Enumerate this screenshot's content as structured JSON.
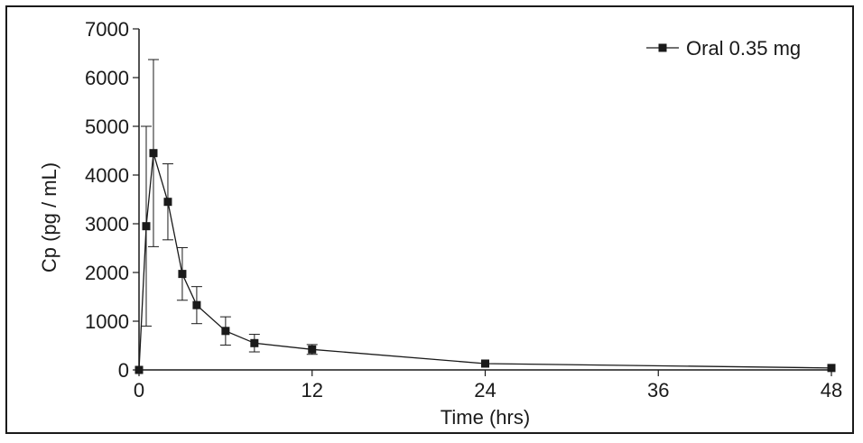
{
  "chart_data": {
    "type": "line",
    "xlabel": "Time (hrs)",
    "ylabel": "Cp (pg / mL)",
    "xlim": [
      0,
      48
    ],
    "ylim": [
      0,
      7000
    ],
    "x_ticks": [
      0,
      12,
      24,
      36,
      48
    ],
    "y_ticks": [
      0,
      1000,
      2000,
      3000,
      4000,
      5000,
      6000,
      7000
    ],
    "x_tick_labels": [
      "0",
      "12",
      "24",
      "36",
      "48"
    ],
    "y_tick_labels": [
      "0",
      "1000",
      "2000",
      "3000",
      "4000",
      "5000",
      "6000",
      "7000"
    ],
    "grid": false,
    "legend_position": "top-right",
    "series": [
      {
        "name": "Oral 0.35 mg",
        "color": "#1a1a1a",
        "marker": "square",
        "x": [
          0,
          0.5,
          1,
          2,
          3,
          4,
          6,
          8,
          12,
          24,
          48
        ],
        "y": [
          0,
          2950,
          4450,
          3450,
          1970,
          1330,
          800,
          550,
          420,
          130,
          40
        ],
        "err": [
          0,
          2050,
          1920,
          780,
          540,
          380,
          290,
          180,
          100,
          0,
          0
        ]
      }
    ]
  }
}
